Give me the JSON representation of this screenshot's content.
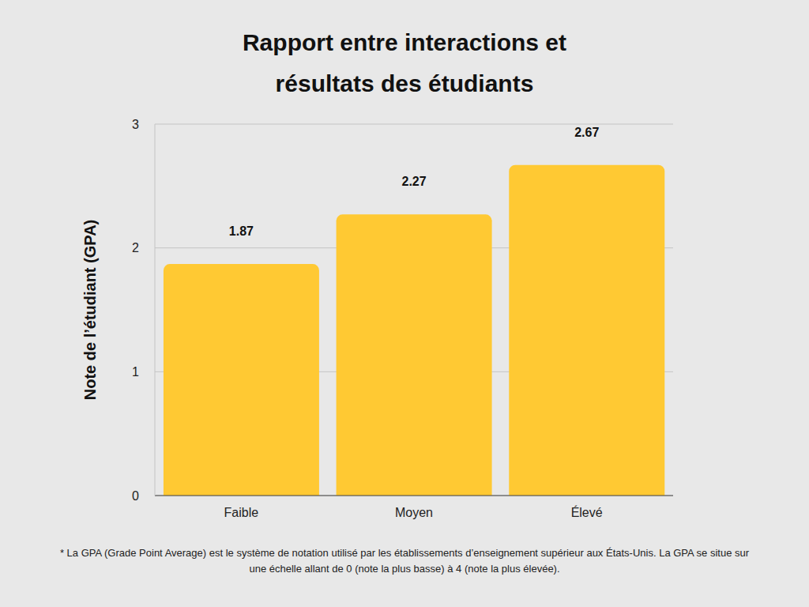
{
  "chart_data": {
    "type": "bar",
    "title": "Rapport entre interactions et résultats des étudiants",
    "y_label": "Note de l’étudiant (GPA)",
    "categories": [
      "Faible",
      "Moyen",
      "Élevé"
    ],
    "values": [
      1.87,
      2.27,
      2.67
    ],
    "color": "#ffc933",
    "ylim": [
      0,
      3
    ],
    "yticks": [
      0,
      1,
      2,
      3
    ],
    "grid": true,
    "data_labels": true,
    "footnote": "* La GPA (Grade Point Average) est le système de notation utilisé par les établissements d’enseignement supérieur aux États-Unis. La GPA se situe sur une échelle allant de 0 (note la plus basse) à 4 (note la plus élevée)."
  }
}
